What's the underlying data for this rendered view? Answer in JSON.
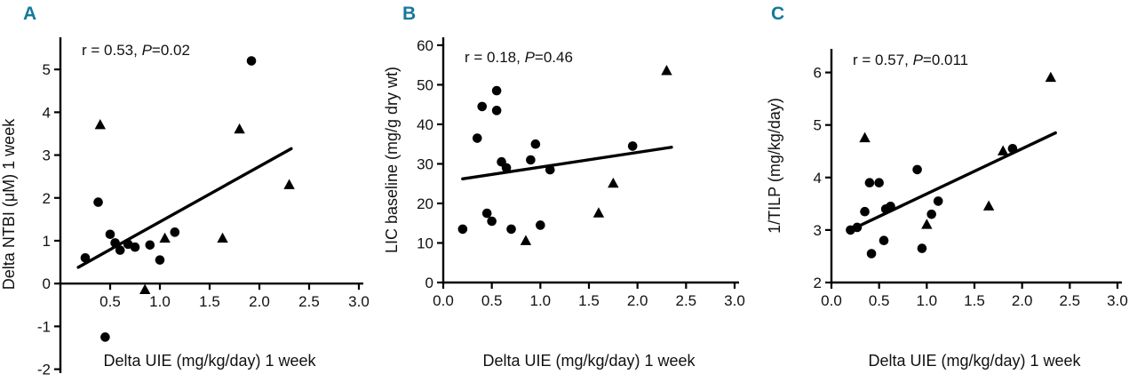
{
  "accent_color": "#15799c",
  "chart_data": [
    {
      "type": "scatter",
      "panel_label": "A",
      "annotation": {
        "pre": "r = 0.53, ",
        "p_italic": "P",
        "post": "=0.02"
      },
      "xlabel": "Delta UIE (mg/kg/day) 1 week",
      "ylabel": "Delta NTBI (μM) 1 week",
      "xlim": [
        0,
        3.0
      ],
      "ylim": [
        -2.05,
        5.75
      ],
      "x_axis_at_y": 0,
      "grid": false,
      "legend": "none",
      "xticks": [
        {
          "v": 0.5,
          "label": "0.5"
        },
        {
          "v": 1.0,
          "label": "1.0"
        },
        {
          "v": 1.5,
          "label": "1.5"
        },
        {
          "v": 2.0,
          "label": "2.0"
        },
        {
          "v": 2.5,
          "label": "2.5"
        },
        {
          "v": 3.0,
          "label": "3.0"
        }
      ],
      "yticks": [
        {
          "v": -2,
          "label": "-2"
        },
        {
          "v": -1,
          "label": "-1"
        },
        {
          "v": 0,
          "label": "0"
        },
        {
          "v": 1,
          "label": "1"
        },
        {
          "v": 2,
          "label": "2"
        },
        {
          "v": 3,
          "label": "3"
        },
        {
          "v": 4,
          "label": "4"
        },
        {
          "v": 5,
          "label": "5"
        }
      ],
      "series": [
        {
          "name": "circles",
          "marker": "circle",
          "points": [
            [
              0.25,
              0.6
            ],
            [
              0.38,
              1.9
            ],
            [
              0.45,
              -1.25
            ],
            [
              0.5,
              1.15
            ],
            [
              0.55,
              0.95
            ],
            [
              0.6,
              0.78
            ],
            [
              0.68,
              0.92
            ],
            [
              0.75,
              0.85
            ],
            [
              0.9,
              0.9
            ],
            [
              1.0,
              0.55
            ],
            [
              1.15,
              1.2
            ],
            [
              1.92,
              5.2
            ]
          ]
        },
        {
          "name": "triangles",
          "marker": "triangle",
          "points": [
            [
              0.4,
              3.7
            ],
            [
              0.85,
              -0.15
            ],
            [
              1.05,
              1.05
            ],
            [
              1.63,
              1.05
            ],
            [
              1.8,
              3.6
            ],
            [
              2.3,
              2.3
            ]
          ]
        }
      ],
      "regression_line": {
        "x1": 0.18,
        "y1": 0.38,
        "x2": 2.32,
        "y2": 3.15
      }
    },
    {
      "type": "scatter",
      "panel_label": "B",
      "annotation": {
        "pre": "r = 0.18, ",
        "p_italic": "P",
        "post": "=0.46"
      },
      "xlabel": "Delta UIE (mg/kg/day) 1 week",
      "ylabel": "LIC baseline (mg/g dry wt)",
      "xlim": [
        0,
        3.0
      ],
      "ylim": [
        0,
        62
      ],
      "x_axis_at_y": 0,
      "grid": false,
      "legend": "none",
      "xticks": [
        {
          "v": 0.0,
          "label": "0.0"
        },
        {
          "v": 0.5,
          "label": "0.5"
        },
        {
          "v": 1.0,
          "label": "1.0"
        },
        {
          "v": 1.5,
          "label": "1.5"
        },
        {
          "v": 2.0,
          "label": "2.0"
        },
        {
          "v": 2.5,
          "label": "2.5"
        },
        {
          "v": 3.0,
          "label": "3.0"
        }
      ],
      "yticks": [
        {
          "v": 0,
          "label": "0"
        },
        {
          "v": 10,
          "label": "10"
        },
        {
          "v": 20,
          "label": "20"
        },
        {
          "v": 30,
          "label": "30"
        },
        {
          "v": 40,
          "label": "40"
        },
        {
          "v": 50,
          "label": "50"
        },
        {
          "v": 60,
          "label": "60"
        }
      ],
      "series": [
        {
          "name": "circles",
          "marker": "circle",
          "points": [
            [
              0.2,
              13.5
            ],
            [
              0.35,
              36.5
            ],
            [
              0.4,
              44.5
            ],
            [
              0.45,
              17.5
            ],
            [
              0.5,
              15.5
            ],
            [
              0.55,
              48.5
            ],
            [
              0.55,
              43.5
            ],
            [
              0.6,
              30.5
            ],
            [
              0.65,
              29
            ],
            [
              0.7,
              13.5
            ],
            [
              0.9,
              31
            ],
            [
              0.95,
              35
            ],
            [
              1.0,
              14.5
            ],
            [
              1.1,
              28.5
            ],
            [
              1.95,
              34.5
            ]
          ]
        },
        {
          "name": "triangles",
          "marker": "triangle",
          "points": [
            [
              0.85,
              10.5
            ],
            [
              1.6,
              17.5
            ],
            [
              1.75,
              25
            ],
            [
              2.3,
              53.5
            ]
          ]
        }
      ],
      "regression_line": {
        "x1": 0.2,
        "y1": 26.2,
        "x2": 2.35,
        "y2": 34.2
      }
    },
    {
      "type": "scatter",
      "panel_label": "C",
      "annotation": {
        "pre": "r = 0.57, ",
        "p_italic": "P",
        "post": "=0.011"
      },
      "xlabel": "Delta UIE (mg/kg/day) 1 week",
      "ylabel": "1/TILP (mg/kg/day)",
      "xlim": [
        0,
        3.0
      ],
      "ylim": [
        2,
        6.45
      ],
      "x_axis_at_y": 2,
      "grid": false,
      "legend": "none",
      "xticks": [
        {
          "v": 0.0,
          "label": "0.0"
        },
        {
          "v": 0.5,
          "label": "0.5"
        },
        {
          "v": 1.0,
          "label": "1.0"
        },
        {
          "v": 1.5,
          "label": "1.5"
        },
        {
          "v": 2.0,
          "label": "2.0"
        },
        {
          "v": 2.5,
          "label": "2.5"
        },
        {
          "v": 3.0,
          "label": "3.0"
        }
      ],
      "yticks": [
        {
          "v": 2,
          "label": "2"
        },
        {
          "v": 3,
          "label": "3"
        },
        {
          "v": 4,
          "label": "4"
        },
        {
          "v": 5,
          "label": "5"
        },
        {
          "v": 6,
          "label": "6"
        }
      ],
      "series": [
        {
          "name": "circles",
          "marker": "circle",
          "points": [
            [
              0.2,
              3.0
            ],
            [
              0.27,
              3.05
            ],
            [
              0.35,
              3.35
            ],
            [
              0.4,
              3.9
            ],
            [
              0.42,
              2.55
            ],
            [
              0.5,
              3.9
            ],
            [
              0.55,
              2.8
            ],
            [
              0.57,
              3.4
            ],
            [
              0.62,
              3.45
            ],
            [
              0.9,
              4.15
            ],
            [
              0.95,
              2.65
            ],
            [
              1.05,
              3.3
            ],
            [
              1.12,
              3.55
            ],
            [
              1.9,
              4.55
            ]
          ]
        },
        {
          "name": "triangles",
          "marker": "triangle",
          "points": [
            [
              0.35,
              4.75
            ],
            [
              1.0,
              3.1
            ],
            [
              1.65,
              3.45
            ],
            [
              1.8,
              4.5
            ],
            [
              2.3,
              5.9
            ]
          ]
        }
      ],
      "regression_line": {
        "x1": 0.2,
        "y1": 3.0,
        "x2": 2.35,
        "y2": 4.85
      }
    }
  ]
}
